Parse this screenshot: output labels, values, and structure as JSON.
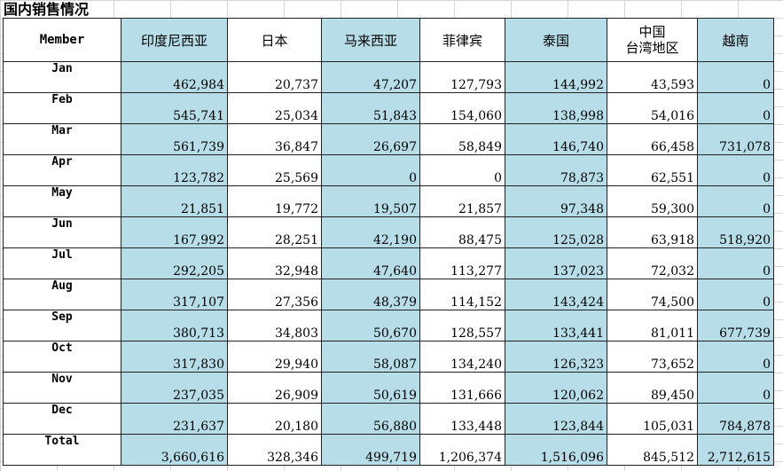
{
  "title": "国内销售情况",
  "columns": [
    "Member",
    "印度尼西亚",
    "日本",
    "马来西亚",
    "菲律宾",
    "泰国",
    "中国 台湾地区",
    "越南"
  ],
  "rows": [
    {
      "label": "Jan",
      "values": [
        "462,984",
        "20,737",
        "47,207",
        "127,793",
        "144,992",
        "43,593",
        "0"
      ]
    },
    {
      "label": "Feb",
      "values": [
        "545,741",
        "25,034",
        "51,843",
        "154,060",
        "138,998",
        "54,016",
        "0"
      ]
    },
    {
      "label": "Mar",
      "values": [
        "561,739",
        "36,847",
        "26,697",
        "58,849",
        "146,740",
        "66,458",
        "731,078"
      ]
    },
    {
      "label": "Apr",
      "values": [
        "123,782",
        "25,569",
        "0",
        "0",
        "78,873",
        "62,551",
        "0"
      ]
    },
    {
      "label": "May",
      "values": [
        "21,851",
        "19,772",
        "19,507",
        "21,857",
        "97,348",
        "59,300",
        "0"
      ]
    },
    {
      "label": "Jun",
      "values": [
        "167,992",
        "28,251",
        "42,190",
        "88,475",
        "125,028",
        "63,918",
        "518,920"
      ]
    },
    {
      "label": "Jul",
      "values": [
        "292,205",
        "32,948",
        "47,640",
        "113,277",
        "137,023",
        "72,032",
        "0"
      ]
    },
    {
      "label": "Aug",
      "values": [
        "317,107",
        "27,356",
        "48,379",
        "114,152",
        "143,424",
        "74,500",
        "0"
      ]
    },
    {
      "label": "Sep",
      "values": [
        "380,713",
        "34,803",
        "50,670",
        "128,557",
        "133,441",
        "81,011",
        "677,739"
      ]
    },
    {
      "label": "Oct",
      "values": [
        "317,830",
        "29,940",
        "58,087",
        "134,240",
        "126,323",
        "73,652",
        "0"
      ]
    },
    {
      "label": "Nov",
      "values": [
        "237,035",
        "26,909",
        "50,619",
        "131,666",
        "120,062",
        "89,450",
        "0"
      ]
    },
    {
      "label": "Dec",
      "values": [
        "231,637",
        "20,180",
        "56,880",
        "133,448",
        "123,844",
        "105,031",
        "784,878"
      ]
    }
  ],
  "total": {
    "label": "Total",
    "values": [
      "3,660,616",
      "328,346",
      "499,719",
      "1,206,374",
      "1,516,096",
      "845,512",
      "2,712,615"
    ]
  },
  "colors": {
    "highlight": "#b7dde8",
    "border": "#222222",
    "grid": "#d4d4d4"
  },
  "highlighted_columns": [
    1,
    3,
    5,
    7
  ]
}
